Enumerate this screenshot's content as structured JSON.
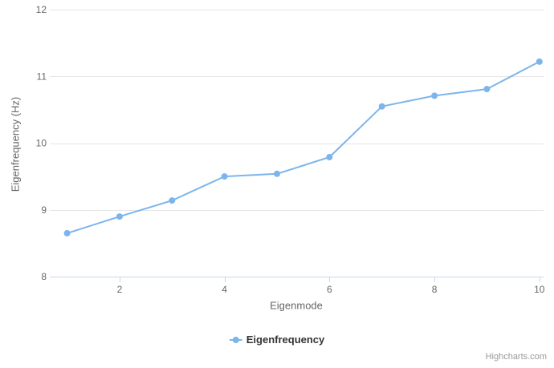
{
  "chart_data": {
    "type": "line",
    "title": "",
    "xlabel": "Eigenmode",
    "ylabel": "Eigenfrequency (Hz)",
    "x": [
      1,
      2,
      3,
      4,
      5,
      6,
      7,
      8,
      9,
      10
    ],
    "series": [
      {
        "name": "Eigenfrequency",
        "values": [
          8.65,
          8.9,
          9.14,
          9.5,
          9.54,
          9.79,
          10.55,
          10.71,
          10.81,
          11.22
        ]
      }
    ],
    "xlim": [
      0.67,
      10.08
    ],
    "ylim": [
      8,
      12
    ],
    "xticks": [
      2,
      4,
      6,
      8,
      10
    ],
    "yticks": [
      8,
      9,
      10,
      11,
      12
    ],
    "grid": "horizontal-only",
    "legend_position": "bottom-center",
    "series_color": "#7cb5ec",
    "grid_color": "#e6e6e6",
    "axis_line_color": "#ccd6eb",
    "label_color": "#666666",
    "title_color": "#666666",
    "legend_text_color": "#333333",
    "credits_color": "#999999"
  },
  "legend": {
    "label": "Eigenfrequency"
  },
  "credits": {
    "label": "Highcharts.com"
  }
}
